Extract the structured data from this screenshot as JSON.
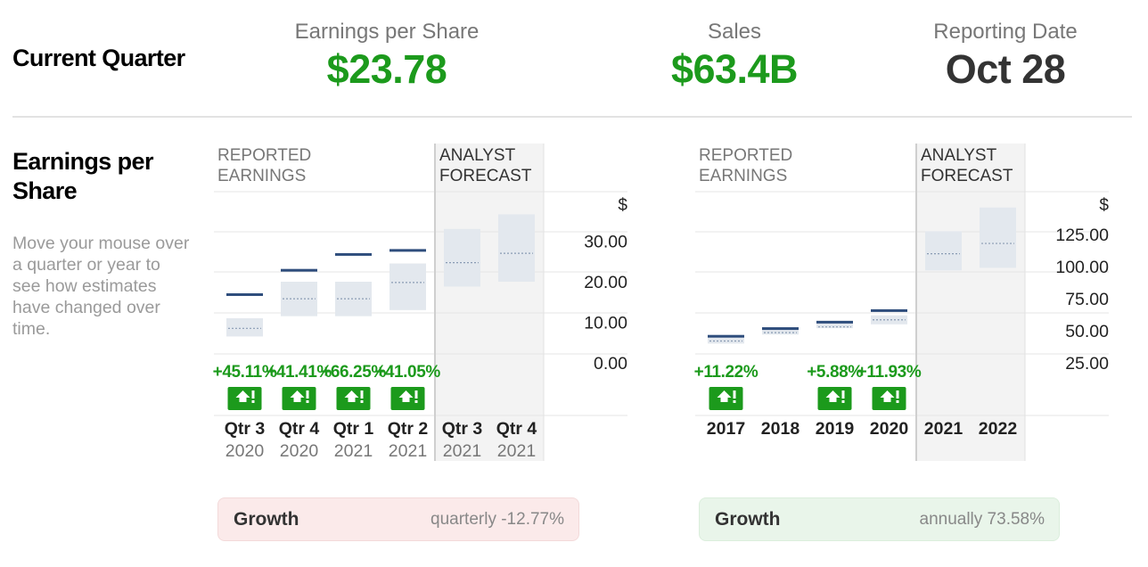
{
  "header": {
    "current_quarter_label": "Current Quarter",
    "eps": {
      "label": "Earnings per Share",
      "value": "$23.78"
    },
    "sales": {
      "label": "Sales",
      "value": "$63.4B"
    },
    "reporting_date": {
      "label": "Reporting Date",
      "value": "Oct 28"
    }
  },
  "eps_section": {
    "title_line1": "Earnings per",
    "title_line2": "Share",
    "help_text": "Move your mouse over a quarter or year to see how estimates have changed over time."
  },
  "colors": {
    "positive": "#1c9a1c",
    "reported_line": "#2e4d7c",
    "estimate_box": "#e3e8ee",
    "forecast_bg": "#f3f3f3"
  },
  "chart_data": [
    {
      "type": "bar",
      "name": "quarterly",
      "section_labels": {
        "reported": [
          "REPORTED",
          "EARNINGS"
        ],
        "forecast": [
          "ANALYST",
          "FORECAST"
        ]
      },
      "currency_label": "$",
      "ylim": [
        0,
        40
      ],
      "y_ticks": [
        0,
        10,
        20,
        30
      ],
      "y_tick_labels": [
        "0.00",
        "10.00",
        "20.00",
        "30.00"
      ],
      "categories": [
        {
          "label": "Qtr 3",
          "year": "2020",
          "forecast": false,
          "est_low": 6.5,
          "est_high": 11,
          "est_mid": 8.5,
          "reported": 16.6,
          "surprise": "+45.11%",
          "icon": "up-surprise-icon"
        },
        {
          "label": "Qtr 4",
          "year": "2020",
          "forecast": false,
          "est_low": 11.5,
          "est_high": 20,
          "est_mid": 15.8,
          "reported": 22.6,
          "surprise": "+41.41%",
          "icon": "up-surprise-icon"
        },
        {
          "label": "Qtr 1",
          "year": "2021",
          "forecast": false,
          "est_low": 11.5,
          "est_high": 20,
          "est_mid": 15.8,
          "reported": 26.5,
          "surprise": "+66.25%",
          "icon": "up-surprise-icon"
        },
        {
          "label": "Qtr 2",
          "year": "2021",
          "forecast": false,
          "est_low": 13,
          "est_high": 24.5,
          "est_mid": 19.8,
          "reported": 27.5,
          "surprise": "+41.05%",
          "icon": "up-surprise-icon"
        },
        {
          "label": "Qtr 3",
          "year": "2021",
          "forecast": true,
          "est_low": 18.8,
          "est_high": 33,
          "est_mid": 24.7,
          "reported": null,
          "surprise": "",
          "icon": ""
        },
        {
          "label": "Qtr 4",
          "year": "2021",
          "forecast": true,
          "est_low": 20,
          "est_high": 36.6,
          "est_mid": 27,
          "reported": null,
          "surprise": "",
          "icon": ""
        }
      ]
    },
    {
      "type": "bar",
      "name": "annual",
      "section_labels": {
        "reported": [
          "REPORTED",
          "EARNINGS"
        ],
        "forecast": [
          "ANALYST",
          "FORECAST"
        ]
      },
      "currency_label": "$",
      "ylim": [
        25,
        150
      ],
      "y_ticks": [
        25,
        50,
        75,
        100,
        125
      ],
      "y_tick_labels": [
        "25.00",
        "50.00",
        "75.00",
        "100.00",
        "125.00"
      ],
      "categories": [
        {
          "label": "2017",
          "year": "",
          "forecast": false,
          "est_low": 40,
          "est_high": 45,
          "est_mid": 42,
          "reported": 45,
          "surprise": "+11.22%",
          "icon": "up-surprise-icon"
        },
        {
          "label": "2018",
          "year": "",
          "forecast": false,
          "est_low": 47,
          "est_high": 51,
          "est_mid": 48.5,
          "reported": 51,
          "surprise": "",
          "icon": ""
        },
        {
          "label": "2019",
          "year": "",
          "forecast": false,
          "est_low": 52,
          "est_high": 56,
          "est_mid": 53,
          "reported": 56,
          "surprise": "+5.88%",
          "icon": "up-surprise-icon"
        },
        {
          "label": "2020",
          "year": "",
          "forecast": false,
          "est_low": 55,
          "est_high": 62,
          "est_mid": 58.5,
          "reported": 65,
          "surprise": "+11.93%",
          "icon": "up-surprise-icon"
        },
        {
          "label": "2021",
          "year": "",
          "forecast": true,
          "est_low": 97,
          "est_high": 127.5,
          "est_mid": 110,
          "reported": null,
          "surprise": "",
          "icon": ""
        },
        {
          "label": "2022",
          "year": "",
          "forecast": true,
          "est_low": 99,
          "est_high": 146,
          "est_mid": 118,
          "reported": null,
          "surprise": "",
          "icon": ""
        }
      ]
    }
  ],
  "growth": {
    "quarterly": {
      "title": "Growth",
      "value": "quarterly -12.77%"
    },
    "annual": {
      "title": "Growth",
      "value": "annually 73.58%"
    }
  }
}
